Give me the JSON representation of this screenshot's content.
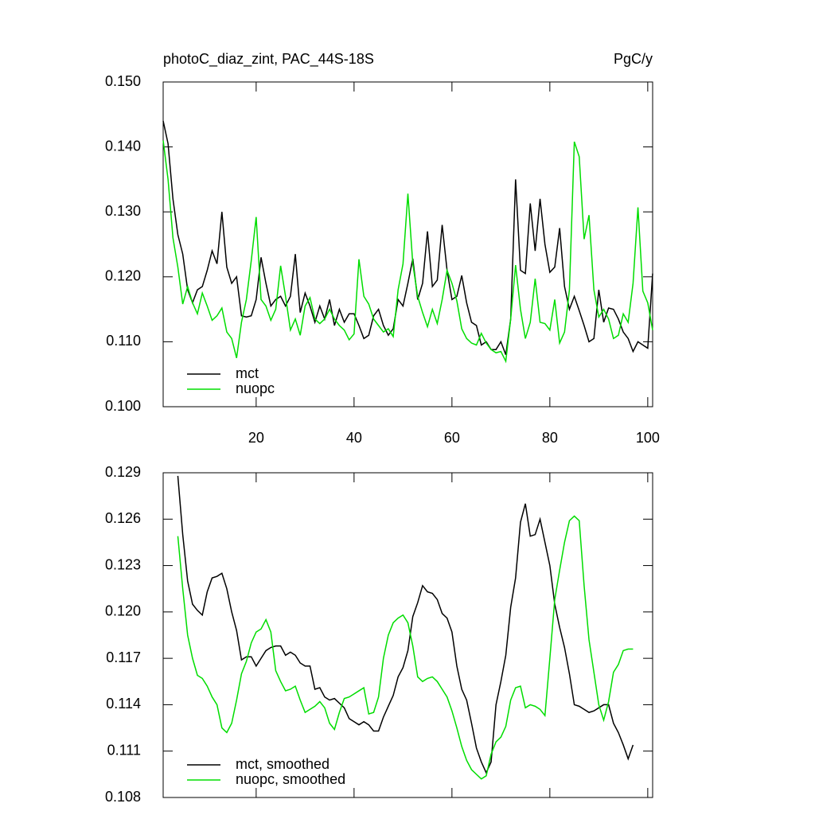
{
  "chart_data": [
    {
      "type": "line",
      "title": "photoC_diaz_zint, PAC_44S-18S",
      "units": "PgC/y",
      "x": [
        1,
        2,
        3,
        4,
        5,
        6,
        7,
        8,
        9,
        10,
        11,
        12,
        13,
        14,
        15,
        16,
        17,
        18,
        19,
        20,
        21,
        22,
        23,
        24,
        25,
        26,
        27,
        28,
        29,
        30,
        31,
        32,
        33,
        34,
        35,
        36,
        37,
        38,
        39,
        40,
        41,
        42,
        43,
        44,
        45,
        46,
        47,
        48,
        49,
        50,
        51,
        52,
        53,
        54,
        55,
        56,
        57,
        58,
        59,
        60,
        61,
        62,
        63,
        64,
        65,
        66,
        67,
        68,
        69,
        70,
        71,
        72,
        73,
        74,
        75,
        76,
        77,
        78,
        79,
        80,
        81,
        82,
        83,
        84,
        85,
        86,
        87,
        88,
        89,
        90,
        91,
        92,
        93,
        94,
        95,
        96,
        97,
        98,
        99,
        100,
        101
      ],
      "series": [
        {
          "name": "mct",
          "color": "#000000",
          "values": [
            0.144,
            0.1405,
            0.132,
            0.1265,
            0.1235,
            0.118,
            0.116,
            0.118,
            0.1185,
            0.121,
            0.124,
            0.122,
            0.13,
            0.1215,
            0.119,
            0.12,
            0.114,
            0.1138,
            0.114,
            0.1165,
            0.123,
            0.119,
            0.1155,
            0.1165,
            0.117,
            0.1155,
            0.117,
            0.1235,
            0.1145,
            0.1175,
            0.1155,
            0.113,
            0.1155,
            0.1135,
            0.1165,
            0.1125,
            0.115,
            0.113,
            0.1143,
            0.1143,
            0.1125,
            0.1105,
            0.111,
            0.114,
            0.115,
            0.1125,
            0.111,
            0.112,
            0.1165,
            0.1155,
            0.119,
            0.1228,
            0.1165,
            0.119,
            0.127,
            0.1185,
            0.1195,
            0.128,
            0.121,
            0.1165,
            0.117,
            0.1202,
            0.116,
            0.113,
            0.1125,
            0.1095,
            0.11,
            0.1088,
            0.1088,
            0.11,
            0.108,
            0.1135,
            0.135,
            0.121,
            0.1205,
            0.1313,
            0.124,
            0.132,
            0.125,
            0.1207,
            0.1215,
            0.1275,
            0.1185,
            0.115,
            0.117,
            0.1148,
            0.1125,
            0.11,
            0.1105,
            0.118,
            0.113,
            0.1152,
            0.115,
            0.1135,
            0.1115,
            0.1105,
            0.1085,
            0.11,
            0.1095,
            0.109,
            0.1205
          ]
        },
        {
          "name": "nuopc",
          "color": "#00dd00",
          "values": [
            0.141,
            0.135,
            0.126,
            0.1215,
            0.1158,
            0.1185,
            0.116,
            0.1143,
            0.1175,
            0.1155,
            0.1133,
            0.114,
            0.1152,
            0.1115,
            0.1105,
            0.1075,
            0.113,
            0.1165,
            0.1225,
            0.1292,
            0.1165,
            0.1155,
            0.1133,
            0.115,
            0.1217,
            0.117,
            0.1118,
            0.1135,
            0.111,
            0.1155,
            0.1168,
            0.1135,
            0.1128,
            0.1135,
            0.115,
            0.1135,
            0.1125,
            0.1118,
            0.1103,
            0.1112,
            0.1227,
            0.117,
            0.1158,
            0.1135,
            0.1125,
            0.1115,
            0.112,
            0.1108,
            0.118,
            0.122,
            0.1328,
            0.122,
            0.117,
            0.1145,
            0.1123,
            0.115,
            0.1128,
            0.1165,
            0.121,
            0.119,
            0.1163,
            0.112,
            0.1105,
            0.1098,
            0.1095,
            0.1113,
            0.1098,
            0.1088,
            0.1083,
            0.1085,
            0.107,
            0.1135,
            0.1218,
            0.115,
            0.1105,
            0.113,
            0.1197,
            0.113,
            0.1128,
            0.1118,
            0.1165,
            0.1098,
            0.1115,
            0.118,
            0.1408,
            0.1385,
            0.1258,
            0.1295,
            0.118,
            0.1138,
            0.115,
            0.1135,
            0.1105,
            0.111,
            0.1143,
            0.113,
            0.119,
            0.1307,
            0.1178,
            0.116,
            0.1118
          ]
        }
      ],
      "xlim": [
        1,
        101
      ],
      "xticks": [
        20,
        40,
        60,
        80,
        100
      ],
      "xtick_labels": true,
      "ylim": [
        0.1,
        0.15
      ],
      "yticks": [
        {
          "value": 0.1,
          "label": "0.100"
        },
        {
          "value": 0.11,
          "label": "0.110"
        },
        {
          "value": 0.12,
          "label": "0.120"
        },
        {
          "value": 0.13,
          "label": "0.130"
        },
        {
          "value": 0.14,
          "label": "0.140"
        },
        {
          "value": 0.15,
          "label": "0.150"
        }
      ],
      "legend": "lower left"
    },
    {
      "type": "line",
      "x": [
        4,
        5,
        6,
        7,
        8,
        9,
        10,
        11,
        12,
        13,
        14,
        15,
        16,
        17,
        18,
        19,
        20,
        21,
        22,
        23,
        24,
        25,
        26,
        27,
        28,
        29,
        30,
        31,
        32,
        33,
        34,
        35,
        36,
        37,
        38,
        39,
        40,
        41,
        42,
        43,
        44,
        45,
        46,
        47,
        48,
        49,
        50,
        51,
        52,
        53,
        54,
        55,
        56,
        57,
        58,
        59,
        60,
        61,
        62,
        63,
        64,
        65,
        66,
        67,
        68,
        69,
        70,
        71,
        72,
        73,
        74,
        75,
        76,
        77,
        78,
        79,
        80,
        81,
        82,
        83,
        84,
        85,
        86,
        87,
        88,
        89,
        90,
        91,
        92,
        93,
        94,
        95,
        96,
        97
      ],
      "series": [
        {
          "name": "mct, smoothed",
          "color": "#000000",
          "values": [
            0.1288,
            0.125,
            0.122,
            0.1205,
            0.1201,
            0.1198,
            0.1213,
            0.1222,
            0.1223,
            0.1225,
            0.1215,
            0.12,
            0.1188,
            0.1169,
            0.1171,
            0.1171,
            0.1165,
            0.117,
            0.1175,
            0.1177,
            0.1178,
            0.1178,
            0.1172,
            0.1174,
            0.1172,
            0.1167,
            0.1165,
            0.1165,
            0.115,
            0.1151,
            0.1145,
            0.1143,
            0.1144,
            0.1141,
            0.1138,
            0.1131,
            0.1129,
            0.1127,
            0.1129,
            0.1127,
            0.1123,
            0.1123,
            0.1132,
            0.1139,
            0.1146,
            0.1158,
            0.1164,
            0.1175,
            0.1197,
            0.1206,
            0.1217,
            0.1213,
            0.1212,
            0.1208,
            0.1199,
            0.1196,
            0.1187,
            0.1165,
            0.115,
            0.1143,
            0.1128,
            0.1112,
            0.1103,
            0.1096,
            0.1103,
            0.114,
            0.1155,
            0.1172,
            0.1203,
            0.1222,
            0.1258,
            0.127,
            0.1249,
            0.125,
            0.126,
            0.1245,
            0.123,
            0.1205,
            0.119,
            0.1177,
            0.116,
            0.114,
            0.1139,
            0.1137,
            0.1135,
            0.1136,
            0.1138,
            0.114,
            0.114,
            0.1128,
            0.1122,
            0.1114,
            0.1105,
            0.1114
          ]
        },
        {
          "name": "nuopc, smoothed",
          "color": "#00dd00",
          "values": [
            0.1249,
            0.1215,
            0.1185,
            0.117,
            0.1159,
            0.1157,
            0.1152,
            0.1145,
            0.114,
            0.1125,
            0.1122,
            0.1128,
            0.1143,
            0.116,
            0.1168,
            0.118,
            0.1187,
            0.1189,
            0.1195,
            0.1187,
            0.1162,
            0.1155,
            0.1149,
            0.115,
            0.1152,
            0.1143,
            0.1135,
            0.1137,
            0.1139,
            0.1142,
            0.1138,
            0.1128,
            0.1124,
            0.1135,
            0.1144,
            0.1145,
            0.1147,
            0.1149,
            0.1151,
            0.1134,
            0.1135,
            0.1145,
            0.117,
            0.1185,
            0.1193,
            0.1196,
            0.1198,
            0.1193,
            0.1178,
            0.1158,
            0.1155,
            0.1157,
            0.1158,
            0.1155,
            0.115,
            0.1145,
            0.1136,
            0.1125,
            0.1113,
            0.1104,
            0.1098,
            0.1095,
            0.1092,
            0.1094,
            0.1108,
            0.1116,
            0.1119,
            0.1126,
            0.1143,
            0.1151,
            0.1152,
            0.1138,
            0.114,
            0.1139,
            0.1137,
            0.1133,
            0.117,
            0.1208,
            0.1227,
            0.1245,
            0.1259,
            0.1262,
            0.1259,
            0.1217,
            0.1182,
            0.1161,
            0.114,
            0.113,
            0.1142,
            0.1161,
            0.1166,
            0.1175,
            0.1176,
            0.1176
          ]
        }
      ],
      "xlim": [
        1,
        101
      ],
      "xticks": [
        20,
        40,
        60,
        80,
        100
      ],
      "xtick_labels": false,
      "ylim": [
        0.108,
        0.129
      ],
      "yticks": [
        0.108,
        0.111,
        0.114,
        0.117,
        {
          "value": 0.12,
          "label": "0.120"
        },
        0.123,
        0.126,
        0.129
      ],
      "legend": "lower left"
    }
  ]
}
